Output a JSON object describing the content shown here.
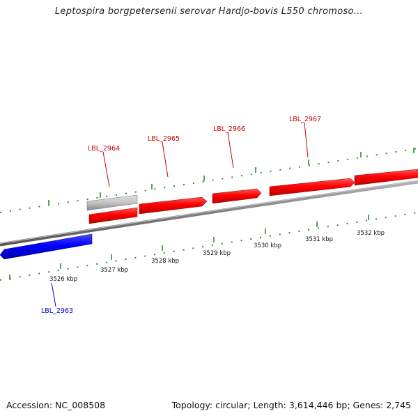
{
  "title": "Leptospira borgpetersenii serovar Hardjo-bovis L550 chromoso...",
  "footer": {
    "accession": "Accession: NC_008508",
    "summary": "Topology: circular; Length: 3,614,446 bp; Genes: 2,745"
  },
  "colors": {
    "forward_gene": "#ff0000",
    "reverse_gene": "#0000ff",
    "other_feature": "#bbbbbb",
    "backbone": "#888888",
    "tick": "#2e8b2e",
    "forward_label": "#cc0000",
    "reverse_label": "#0000cc"
  },
  "kbp_labels": [
    "3526 kbp",
    "3527 kbp",
    "3528 kbp",
    "3529 kbp",
    "3530 kbp",
    "3531 kbp",
    "3532 kbp"
  ],
  "genes": [
    {
      "label": "LBL_2963",
      "strand": "reverse"
    },
    {
      "label": "LBL_2964",
      "strand": "forward"
    },
    {
      "label": "LBL_2965",
      "strand": "forward"
    },
    {
      "label": "LBL_2966",
      "strand": "forward"
    },
    {
      "label": "LBL_2967",
      "strand": "forward"
    }
  ]
}
